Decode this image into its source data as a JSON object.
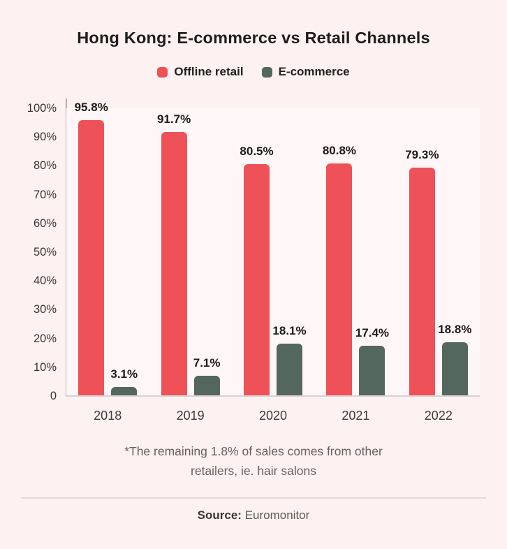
{
  "chart_data": {
    "type": "bar",
    "title": "Hong Kong: E-commerce vs Retail Channels",
    "categories": [
      "2018",
      "2019",
      "2020",
      "2021",
      "2022"
    ],
    "series": [
      {
        "name": "Offline retail",
        "color": "#ee5157",
        "values": [
          95.8,
          91.7,
          80.5,
          80.8,
          79.3
        ],
        "labels": [
          "95.8%",
          "91.7%",
          "80.5%",
          "80.8%",
          "79.3%"
        ]
      },
      {
        "name": "E-commerce",
        "color": "#54675f",
        "values": [
          3.1,
          7.1,
          18.1,
          17.4,
          18.8
        ],
        "labels": [
          "3.1%",
          "7.1%",
          "18.1%",
          "17.4%",
          "18.8%"
        ]
      }
    ],
    "y_ticks": [
      "100%",
      "90%",
      "80%",
      "70%",
      "60%",
      "50%",
      "40%",
      "30%",
      "20%",
      "10%",
      "0"
    ],
    "ylim": [
      0,
      100
    ],
    "grid": false,
    "legend_position": "top",
    "xlabel": "",
    "ylabel": ""
  },
  "footnote": "*The remaining 1.8% of sales comes from other retailers, ie. hair salons",
  "source": {
    "label": "Source:",
    "value": "Euromonitor"
  },
  "colors": {
    "background": "#fdf1f2",
    "plot_background": "#fef6f7",
    "offline_retail_bar": "#ee5157",
    "ecommerce_bar": "#54675f",
    "axis_line": "#b9aeaf",
    "baseline": "#dcd1d2",
    "title_text": "#201c1d",
    "tick_text": "#3a3435",
    "value_label_text": "#1c1a1a",
    "footnote_text": "#6e5d5e",
    "divider": "#e7d9da",
    "source_label_text": "#3b3637",
    "source_value_text": "#5d5758"
  }
}
